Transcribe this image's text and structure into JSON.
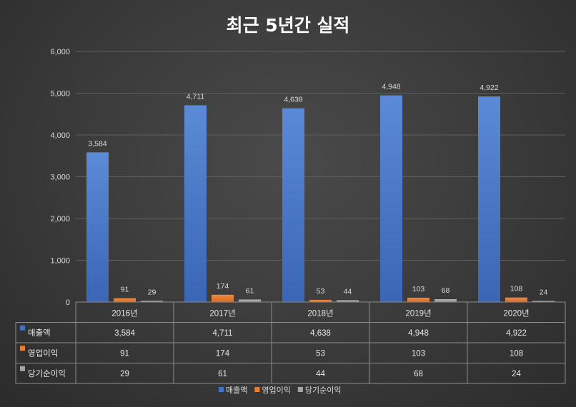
{
  "chart_data": {
    "type": "bar",
    "title": "최근 5년간 실적",
    "categories": [
      "2016년",
      "2017년",
      "2018년",
      "2019년",
      "2020년"
    ],
    "series": [
      {
        "name": "매출액",
        "values": [
          3584,
          4711,
          4638,
          4948,
          4922
        ],
        "color": "#4472c4"
      },
      {
        "name": "영업이익",
        "values": [
          91,
          174,
          53,
          103,
          108
        ],
        "color": "#ed7d31"
      },
      {
        "name": "당기순이익",
        "values": [
          29,
          61,
          44,
          68,
          24
        ],
        "color": "#a5a5a5"
      }
    ],
    "ylim": [
      0,
      6000
    ],
    "yticks": [
      0,
      1000,
      2000,
      3000,
      4000,
      5000,
      6000
    ],
    "grid": true,
    "legend": "bottom",
    "data_table": true
  }
}
